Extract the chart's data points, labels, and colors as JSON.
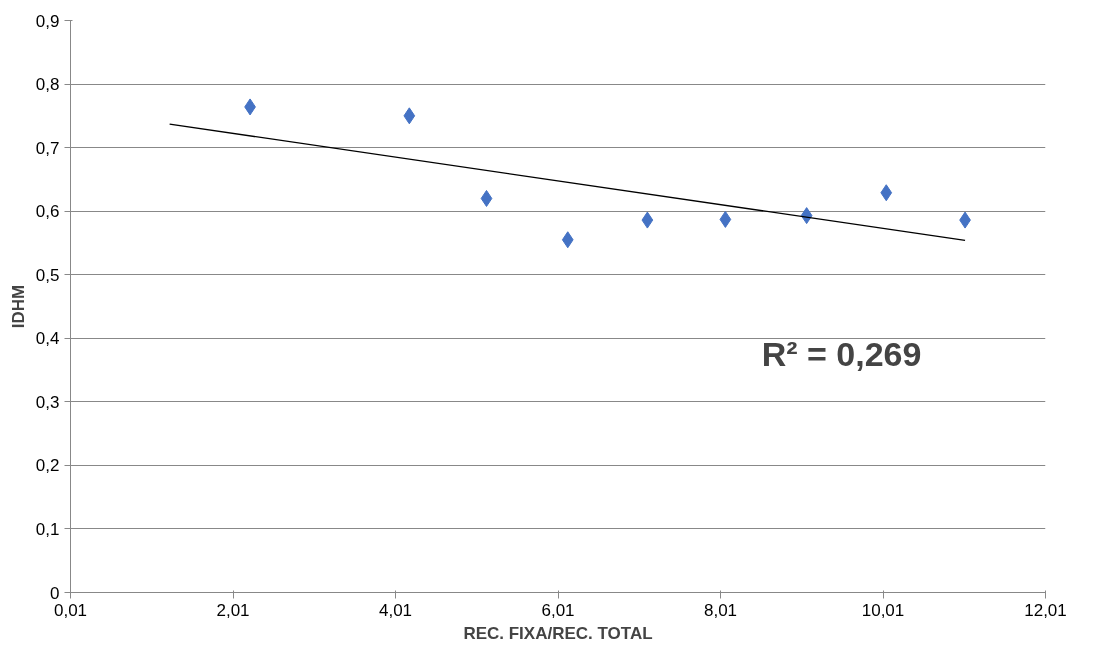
{
  "chart_data": {
    "type": "scatter",
    "xlabel": "REC. FIXA/REC. TOTAL",
    "ylabel": "IDHM",
    "x": [
      2.22,
      4.18,
      5.13,
      6.13,
      7.11,
      8.07,
      9.07,
      10.05,
      11.02
    ],
    "series": [
      {
        "color": "#4472c4",
        "marker": "diamond",
        "values": [
          0.764,
          0.75,
          0.62,
          0.555,
          0.586,
          0.587,
          0.593,
          0.629,
          0.586
        ]
      },
      {
        "type": "line",
        "color": "#000000",
        "x": [
          1.23,
          11.02
        ],
        "values": [
          0.737,
          0.554
        ]
      }
    ],
    "xlim": [
      0.01,
      12.01
    ],
    "xticks": [
      {
        "value": 0.01,
        "label": "0,01"
      },
      {
        "value": 2.01,
        "label": "2,01"
      },
      {
        "value": 4.01,
        "label": "4,01"
      },
      {
        "value": 6.01,
        "label": "6,01"
      },
      {
        "value": 8.01,
        "label": "8,01"
      },
      {
        "value": 10.01,
        "label": "10,01"
      },
      {
        "value": 12.01,
        "label": "12,01"
      }
    ],
    "ylim": [
      0,
      0.9
    ],
    "yticks": [
      0,
      {
        "value": 0.1,
        "label": "0,1"
      },
      {
        "value": 0.2,
        "label": "0,2"
      },
      {
        "value": 0.3,
        "label": "0,3"
      },
      {
        "value": 0.4,
        "label": "0,4"
      },
      {
        "value": 0.5,
        "label": "0,5"
      },
      {
        "value": 0.6,
        "label": "0,6"
      },
      {
        "value": 0.7,
        "label": "0,7"
      },
      {
        "value": 0.8,
        "label": "0,8"
      },
      {
        "value": 0.9,
        "label": "0,9"
      }
    ],
    "grid": "y",
    "annotations": [
      "R² = 0,269"
    ]
  }
}
